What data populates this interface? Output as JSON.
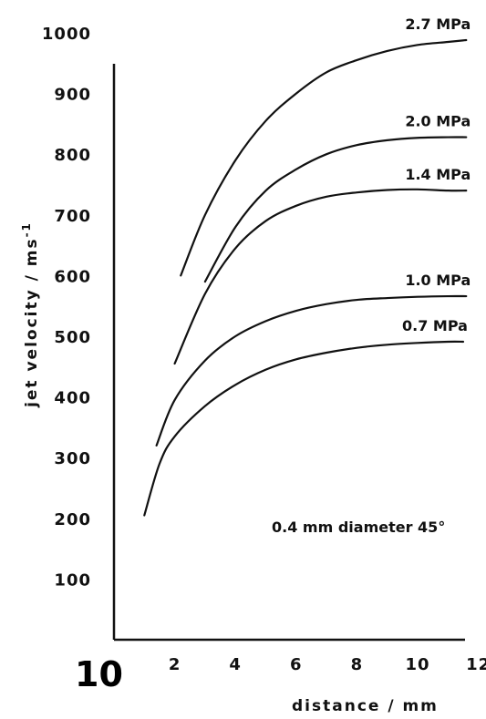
{
  "page_number": "10",
  "chart_data": {
    "type": "line",
    "xlabel": "distance / mm",
    "ylabel_main": "jet velocity / ms",
    "ylabel_sup": "-1",
    "annotation": "0.4 mm diameter 45°",
    "xlim": [
      0,
      12
    ],
    "ylim": [
      0,
      1000
    ],
    "x_ticks": [
      2,
      4,
      6,
      8,
      10,
      12
    ],
    "y_ticks": [
      100,
      200,
      300,
      400,
      500,
      600,
      700,
      800,
      900,
      1000
    ],
    "y_tick_labels": [
      "100",
      "200",
      "300",
      "400",
      "500",
      "600",
      "700",
      "800",
      "900",
      "1000"
    ],
    "series": [
      {
        "name": "2.7 MPa",
        "x": [
          2.2,
          3.0,
          4.0,
          5.0,
          6.0,
          7.0,
          8.0,
          9.0,
          10.0,
          11.0,
          11.6
        ],
        "y": [
          600,
          700,
          790,
          855,
          900,
          935,
          955,
          970,
          980,
          985,
          988
        ]
      },
      {
        "name": "2.0 MPa",
        "x": [
          3.0,
          4.0,
          5.0,
          6.0,
          7.0,
          8.0,
          9.0,
          10.0,
          11.0,
          11.6
        ],
        "y": [
          590,
          680,
          740,
          775,
          800,
          815,
          823,
          827,
          828,
          828
        ]
      },
      {
        "name": "1.4 MPa",
        "x": [
          2.0,
          3.0,
          4.0,
          5.0,
          6.0,
          7.0,
          8.0,
          9.0,
          10.0,
          11.0,
          11.6
        ],
        "y": [
          455,
          570,
          645,
          690,
          715,
          730,
          737,
          741,
          742,
          740,
          740
        ]
      },
      {
        "name": "1.0 MPa",
        "x": [
          1.4,
          2.0,
          3.0,
          4.0,
          5.0,
          6.0,
          7.0,
          8.0,
          9.0,
          10.0,
          11.0,
          11.6
        ],
        "y": [
          320,
          395,
          460,
          500,
          525,
          542,
          553,
          560,
          563,
          565,
          566,
          566
        ]
      },
      {
        "name": "0.7 MPa",
        "x": [
          1.0,
          1.5,
          2.0,
          3.0,
          4.0,
          5.0,
          6.0,
          7.0,
          8.0,
          9.0,
          10.0,
          11.0,
          11.5
        ],
        "y": [
          205,
          290,
          335,
          385,
          420,
          445,
          462,
          473,
          481,
          486,
          489,
          491,
          491
        ]
      }
    ]
  }
}
